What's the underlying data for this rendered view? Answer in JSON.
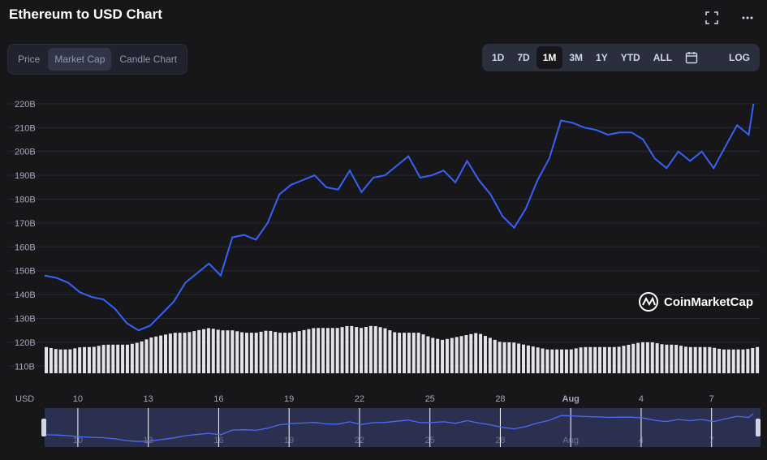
{
  "header": {
    "title": "Ethereum to USD Chart"
  },
  "tabs": [
    "Price",
    "Market Cap",
    "Candle Chart"
  ],
  "active_tab": "Market Cap",
  "ranges": [
    "1D",
    "7D",
    "1M",
    "3M",
    "1Y",
    "YTD",
    "ALL",
    "LOG"
  ],
  "active_range": "1M",
  "icons": {
    "fullscreen": "fullscreen-icon",
    "more": "more-icon",
    "calendar": "calendar-icon"
  },
  "watermark": "CoinMarketCap",
  "currency_label": "USD",
  "colors": {
    "line": "#3861fb",
    "grid": "#262a36",
    "volume": "#e2e4ea",
    "navigator_fill": "#2b3050"
  },
  "chart_data": {
    "type": "line",
    "ylabel_unit": "B",
    "ylim": [
      105,
      222
    ],
    "yticks": [
      "110B",
      "120B",
      "130B",
      "140B",
      "150B",
      "160B",
      "170B",
      "180B",
      "190B",
      "200B",
      "210B",
      "220B"
    ],
    "ytick_values": [
      110,
      120,
      130,
      140,
      150,
      160,
      170,
      180,
      190,
      200,
      210,
      220
    ],
    "xtick_labels": [
      "10",
      "13",
      "16",
      "19",
      "22",
      "25",
      "28",
      "Aug",
      "4",
      "7"
    ],
    "xtick_days": [
      1,
      4,
      7,
      10,
      13,
      16,
      19,
      22,
      25,
      28
    ],
    "x_days": [
      0,
      0.5,
      1,
      1.5,
      2,
      2.5,
      3,
      3.5,
      4,
      4.5,
      5,
      5.5,
      6,
      6.5,
      7,
      7.5,
      8,
      8.5,
      9,
      9.5,
      10,
      10.5,
      11,
      11.5,
      12,
      12.5,
      13,
      13.5,
      14,
      14.5,
      15,
      15.5,
      16,
      16.5,
      17,
      17.5,
      18,
      18.5,
      19,
      19.5,
      20,
      20.5,
      21,
      21.5,
      22,
      22.5,
      23,
      23.5,
      24,
      24.5,
      25,
      25.5,
      26,
      26.5,
      27,
      27.5,
      28,
      28.5,
      29,
      29.5,
      30,
      30.2
    ],
    "values": [
      148,
      147,
      145,
      141,
      139,
      138,
      134,
      128,
      125,
      127,
      132,
      137,
      145,
      149,
      153,
      148,
      164,
      165,
      163,
      170,
      182,
      186,
      188,
      190,
      185,
      184,
      192,
      183,
      189,
      190,
      194,
      198,
      189,
      190,
      192,
      187,
      196,
      188,
      182,
      173,
      168,
      176,
      188,
      197,
      213,
      212,
      210,
      209,
      207,
      208,
      208,
      205,
      197,
      193,
      200,
      196,
      200,
      193,
      202,
      211,
      207,
      220
    ]
  },
  "volume_data": {
    "values": [
      118,
      117,
      117,
      118,
      118,
      119,
      119,
      119,
      120,
      122,
      123,
      124,
      124,
      125,
      126,
      125,
      125,
      124,
      124,
      125,
      124,
      124,
      125,
      126,
      126,
      126,
      127,
      126,
      127,
      126,
      124,
      124,
      124,
      122,
      121,
      122,
      123,
      124,
      122,
      120,
      120,
      119,
      118,
      117,
      117,
      117,
      118,
      118,
      118,
      118,
      119,
      120,
      120,
      119,
      119,
      118,
      118,
      118,
      117,
      117,
      117,
      118
    ]
  }
}
